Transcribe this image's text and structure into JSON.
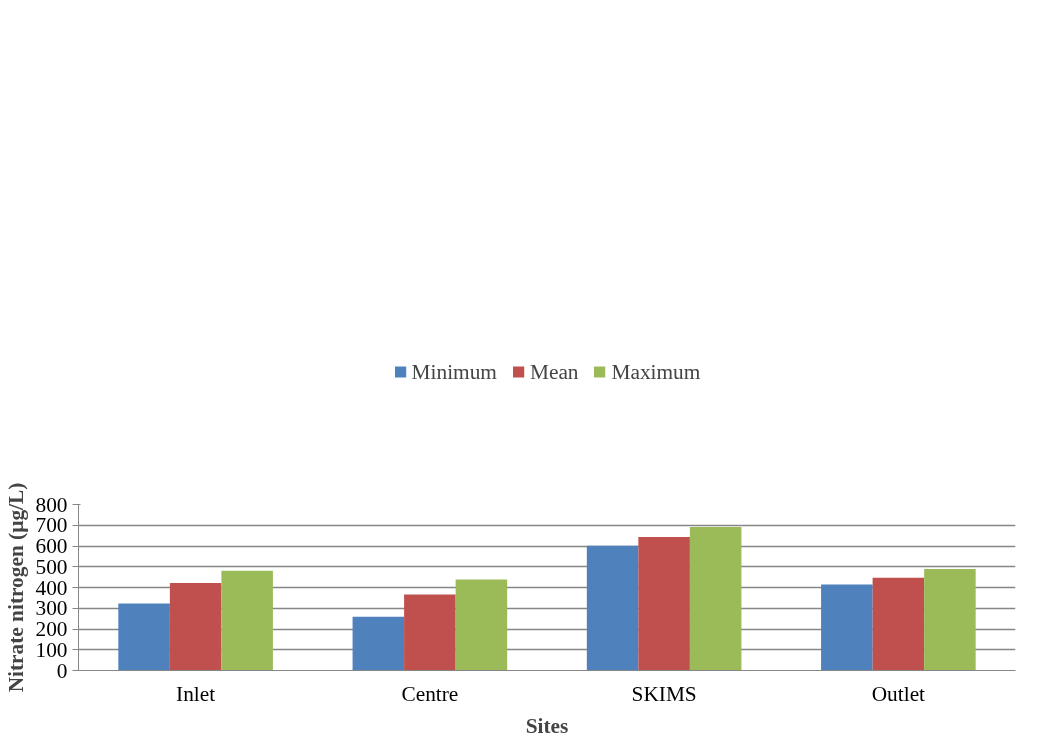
{
  "chart_data": {
    "type": "bar",
    "xlabel": "Sites",
    "ylabel": "Nitrate nitrogen (µg/L)",
    "categories": [
      "Inlet",
      "Centre",
      "SKIMS",
      "Outlet"
    ],
    "series": [
      {
        "name": "Minimum",
        "color": "#4f81bd",
        "values": [
          323,
          259,
          601,
          414
        ]
      },
      {
        "name": "Mean",
        "color": "#c0504d",
        "values": [
          422,
          366,
          643,
          447
        ]
      },
      {
        "name": "Maximum",
        "color": "#9bbb59",
        "values": [
          481,
          439,
          691,
          489
        ]
      }
    ],
    "ylim": [
      0,
      800
    ],
    "yticks": [
      0,
      100,
      200,
      300,
      400,
      500,
      600,
      700,
      800
    ],
    "grid": "y",
    "legend": "top"
  }
}
